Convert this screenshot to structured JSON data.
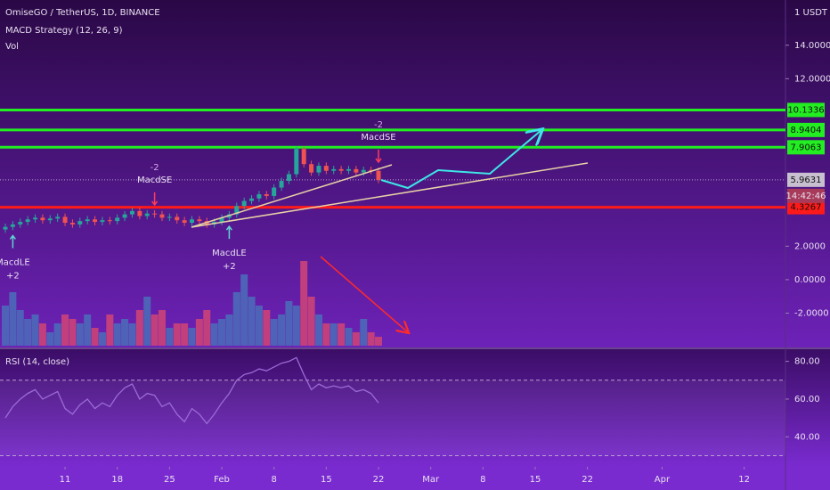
{
  "chart_data": [
    {
      "type": "candlestick",
      "title": "OmiseGO / TetherUS, 1D, BINANCE",
      "indicators": [
        "MACD Strategy (12, 26, 9)",
        "Vol"
      ],
      "unit": "1 USDT",
      "countdown": "14:42:46",
      "x": [
        "01-03",
        "01-04",
        "01-05",
        "01-06",
        "01-07",
        "01-08",
        "01-09",
        "01-10",
        "01-11",
        "01-12",
        "01-13",
        "01-14",
        "01-15",
        "01-16",
        "01-17",
        "01-18",
        "01-19",
        "01-20",
        "01-21",
        "01-22",
        "01-23",
        "01-24",
        "01-25",
        "01-26",
        "01-27",
        "01-28",
        "01-29",
        "01-30",
        "01-31",
        "02-01",
        "02-02",
        "02-03",
        "02-04",
        "02-05",
        "02-06",
        "02-07",
        "02-08",
        "02-09",
        "02-10",
        "02-11",
        "02-12",
        "02-13",
        "02-14",
        "02-15",
        "02-16",
        "02-17",
        "02-18",
        "02-19",
        "02-20",
        "02-21",
        "02-22"
      ],
      "open": [
        3.0,
        3.15,
        3.3,
        3.45,
        3.6,
        3.7,
        3.55,
        3.65,
        3.75,
        3.4,
        3.3,
        3.5,
        3.6,
        3.45,
        3.55,
        3.5,
        3.7,
        3.9,
        4.1,
        3.8,
        3.95,
        3.9,
        3.7,
        3.75,
        3.55,
        3.4,
        3.6,
        3.5,
        3.3,
        3.45,
        3.7,
        3.9,
        4.4,
        4.7,
        4.85,
        5.1,
        5.0,
        5.5,
        5.9,
        6.3,
        7.8,
        6.9,
        6.4,
        6.8,
        6.5,
        6.6,
        6.5,
        6.6,
        6.4,
        6.55,
        6.5
      ],
      "high": [
        3.35,
        3.5,
        3.65,
        3.8,
        3.9,
        3.9,
        3.85,
        3.95,
        3.95,
        3.6,
        3.7,
        3.8,
        3.8,
        3.75,
        3.75,
        3.9,
        4.1,
        4.3,
        4.3,
        4.15,
        4.15,
        4.1,
        3.95,
        3.95,
        3.75,
        3.8,
        3.8,
        3.7,
        3.65,
        3.9,
        4.1,
        4.6,
        4.9,
        5.05,
        5.3,
        5.3,
        5.7,
        6.1,
        6.5,
        7.95,
        7.95,
        7.1,
        7.0,
        7.0,
        6.8,
        6.8,
        6.8,
        6.8,
        6.75,
        6.75,
        6.7
      ],
      "low": [
        2.8,
        2.95,
        3.1,
        3.25,
        3.4,
        3.35,
        3.35,
        3.45,
        3.2,
        3.1,
        3.1,
        3.3,
        3.25,
        3.25,
        3.3,
        3.3,
        3.5,
        3.7,
        3.6,
        3.6,
        3.7,
        3.5,
        3.5,
        3.35,
        3.2,
        3.2,
        3.3,
        3.1,
        3.1,
        3.25,
        3.5,
        3.7,
        4.2,
        4.5,
        4.65,
        4.8,
        4.8,
        5.3,
        5.7,
        6.1,
        6.7,
        6.2,
        6.2,
        6.3,
        6.3,
        6.3,
        6.3,
        6.2,
        6.2,
        6.3,
        5.76
      ],
      "close": [
        3.15,
        3.3,
        3.45,
        3.6,
        3.7,
        3.55,
        3.65,
        3.75,
        3.4,
        3.3,
        3.5,
        3.6,
        3.45,
        3.55,
        3.5,
        3.7,
        3.9,
        4.1,
        3.8,
        3.95,
        3.9,
        3.7,
        3.75,
        3.55,
        3.4,
        3.6,
        3.5,
        3.3,
        3.45,
        3.7,
        3.9,
        4.4,
        4.7,
        4.85,
        5.1,
        5.0,
        5.5,
        5.9,
        6.3,
        7.8,
        6.9,
        6.4,
        6.8,
        6.5,
        6.6,
        6.5,
        6.6,
        6.4,
        6.55,
        6.5,
        5.96
      ],
      "volume": [
        45,
        60,
        40,
        30,
        35,
        25,
        15,
        25,
        35,
        30,
        25,
        35,
        20,
        15,
        35,
        25,
        30,
        25,
        40,
        55,
        35,
        40,
        20,
        25,
        25,
        20,
        30,
        40,
        25,
        30,
        35,
        60,
        80,
        55,
        45,
        40,
        30,
        35,
        50,
        45,
        95,
        55,
        35,
        25,
        25,
        25,
        20,
        15,
        30,
        15,
        10
      ],
      "colors": {
        "up": "#26a69a",
        "down": "#ef5350",
        "vol_up": "#4e63b8",
        "vol_down": "#c23f7e"
      },
      "ylim": [
        -3.94,
        16.7
      ],
      "yticks": [
        {
          "value": 14,
          "label": "14.0000"
        },
        {
          "value": 12,
          "label": "12.0000"
        },
        {
          "value": 2,
          "label": "2.0000"
        },
        {
          "value": 0,
          "label": "0.0000"
        },
        {
          "value": -2,
          "label": "-2.0000"
        }
      ],
      "grid": false,
      "levels": [
        {
          "value": 10.1336,
          "color": "#22ee22"
        },
        {
          "value": 8.9404,
          "color": "#22ee22"
        },
        {
          "value": 7.9063,
          "color": "#22ee22"
        },
        {
          "value": 4.3267,
          "color": "#ff1a1a"
        }
      ],
      "last_price": 5.9631,
      "signals": [
        {
          "x": "01-04",
          "label": "MacdLE",
          "qty": "+2",
          "side": "long"
        },
        {
          "x": "01-23",
          "label": "MacdSE",
          "qty": "-2",
          "side": "short"
        },
        {
          "x": "02-02",
          "label": "MacdLE",
          "qty": "+2",
          "side": "long"
        },
        {
          "x": "02-22",
          "label": "MacdSE",
          "qty": "-2",
          "side": "short"
        }
      ]
    },
    {
      "type": "line",
      "title": "RSI (14, close)",
      "values": [
        50,
        56,
        60,
        63,
        65,
        60,
        62,
        64,
        55,
        52,
        57,
        60,
        55,
        58,
        56,
        62,
        66,
        68,
        60,
        63,
        62,
        56,
        58,
        52,
        48,
        55,
        52,
        47,
        52,
        58,
        63,
        70,
        73,
        74,
        76,
        75,
        77,
        79,
        80,
        82,
        73,
        65,
        68,
        66,
        67,
        66,
        67,
        64,
        65,
        63,
        58
      ],
      "color": "#9b6bd6",
      "ylim": [
        26,
        85
      ],
      "yticks": [
        {
          "value": 80,
          "label": "80.00"
        },
        {
          "value": 60,
          "label": "60.00"
        },
        {
          "value": 40,
          "label": "40.00"
        }
      ],
      "bands": [
        70,
        30
      ],
      "xticks": [
        {
          "value": "01-11",
          "label": "11"
        },
        {
          "value": "01-18",
          "label": "18"
        },
        {
          "value": "01-25",
          "label": "25"
        },
        {
          "value": "02-01",
          "label": "Feb"
        },
        {
          "value": "02-08",
          "label": "8"
        },
        {
          "value": "02-15",
          "label": "15"
        },
        {
          "value": "02-22",
          "label": "22"
        },
        {
          "value": "03-01",
          "label": "Mar"
        },
        {
          "value": "03-08",
          "label": "8"
        },
        {
          "value": "03-15",
          "label": "15"
        },
        {
          "value": "03-22",
          "label": "22"
        },
        {
          "value": "04-01",
          "label": "Apr"
        },
        {
          "value": "04-12",
          "label": "12"
        }
      ]
    }
  ]
}
